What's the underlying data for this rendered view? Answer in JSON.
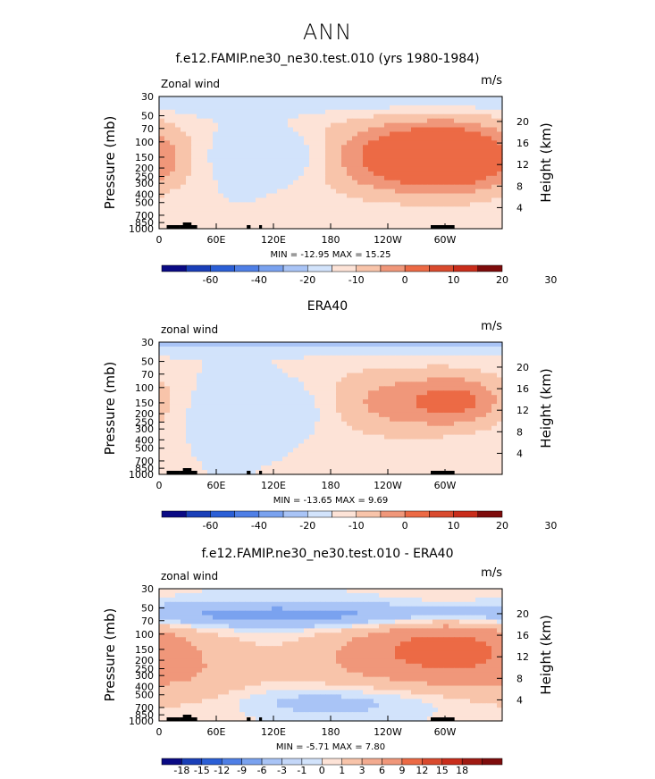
{
  "main_title": "ANN",
  "colors": {
    "blue_dark": "#0a0a84",
    "blue_mid": "#2b5fd6",
    "blue_light": "#7aa2ef",
    "blue_pale": "#a9c4f6",
    "blue_faint": "#d2e3fb",
    "pink_faint": "#fde3d7",
    "pink_light": "#f8c4aa",
    "salmon": "#f0977a",
    "orange_red": "#ec6a45",
    "red": "#c92d1b",
    "red_dark": "#7e0c0c",
    "land": "#000000"
  },
  "chart_data": [
    {
      "type": "heatmap",
      "title": "f.e12.FAMIP.ne30_ne30.test.010 (yrs 1980-1984)",
      "left_label": "Zonal wind",
      "units": "m/s",
      "ylabel": "Pressure (mb)",
      "ylabel_right": "Height (km)",
      "x_ticks": [
        "0",
        "60E",
        "120E",
        "180",
        "120W",
        "60W"
      ],
      "x_tick_values": [
        0,
        60,
        120,
        180,
        240,
        300
      ],
      "xlim": [
        0,
        360
      ],
      "p_ticks": [
        "30",
        "50",
        "70",
        "100",
        "150",
        "200",
        "250",
        "300",
        "400",
        "500",
        "700",
        "850",
        "1000"
      ],
      "p_tick_values": [
        30,
        50,
        70,
        100,
        150,
        200,
        250,
        300,
        400,
        500,
        700,
        850,
        1000
      ],
      "height_ticks": [
        "20",
        "16",
        "12",
        "8",
        "4"
      ],
      "height_tick_values": [
        20,
        16,
        12,
        8,
        4
      ],
      "stats": "MIN = -12.95   MAX =  15.25",
      "min": -12.95,
      "max": 15.25,
      "colorbar_labels": [
        "-60",
        "-40",
        "-20",
        "-10",
        "0",
        "10",
        "20",
        "30"
      ],
      "features": [
        {
          "lon": 250,
          "p": 150,
          "value": 14,
          "lon_radius": 70,
          "p_spread": 1.4
        },
        {
          "lon": 315,
          "p": 150,
          "value": 13,
          "lon_radius": 45,
          "p_spread": 1.3
        },
        {
          "lon": 130,
          "p": 150,
          "value": -7,
          "lon_radius": 50,
          "p_spread": 1.0
        },
        {
          "lon": 180,
          "p": 30,
          "value": -4,
          "lon_radius": 400,
          "p_spread": 0.6
        }
      ]
    },
    {
      "type": "heatmap",
      "title": "ERA40",
      "left_label": "zonal wind",
      "units": "m/s",
      "ylabel": "Pressure (mb)",
      "ylabel_right": "Height (km)",
      "x_ticks": [
        "0",
        "60E",
        "120E",
        "180",
        "120W",
        "60W"
      ],
      "x_tick_values": [
        0,
        60,
        120,
        180,
        240,
        300
      ],
      "xlim": [
        0,
        360
      ],
      "p_ticks": [
        "30",
        "50",
        "70",
        "100",
        "150",
        "200",
        "250",
        "300",
        "400",
        "500",
        "700",
        "850",
        "1000"
      ],
      "p_tick_values": [
        30,
        50,
        70,
        100,
        150,
        200,
        250,
        300,
        400,
        500,
        700,
        850,
        1000
      ],
      "height_ticks": [
        "20",
        "16",
        "12",
        "8",
        "4"
      ],
      "height_tick_values": [
        20,
        16,
        12,
        8,
        4
      ],
      "stats": "MIN = -13.65   MAX =   9.69",
      "min": -13.65,
      "max": 9.69,
      "colorbar_labels": [
        "-60",
        "-40",
        "-20",
        "-10",
        "0",
        "10",
        "20",
        "30"
      ],
      "features": [
        {
          "lon": 245,
          "p": 150,
          "value": 9,
          "lon_radius": 65,
          "p_spread": 1.3
        },
        {
          "lon": 320,
          "p": 140,
          "value": 8,
          "lon_radius": 35,
          "p_spread": 1.0
        },
        {
          "lon": 120,
          "p": 170,
          "value": -6,
          "lon_radius": 55,
          "p_spread": 1.0
        },
        {
          "lon": 180,
          "p": 30,
          "value": -8,
          "lon_radius": 400,
          "p_spread": 0.35
        }
      ]
    },
    {
      "type": "heatmap",
      "title": "f.e12.FAMIP.ne30_ne30.test.010 - ERA40",
      "left_label": "zonal wind",
      "units": "m/s",
      "ylabel": "Pressure (mb)",
      "ylabel_right": "Height (km)",
      "x_ticks": [
        "0",
        "60E",
        "120E",
        "180",
        "120W",
        "60W"
      ],
      "x_tick_values": [
        0,
        60,
        120,
        180,
        240,
        300
      ],
      "xlim": [
        0,
        360
      ],
      "p_ticks": [
        "30",
        "50",
        "70",
        "100",
        "150",
        "200",
        "250",
        "300",
        "400",
        "500",
        "700",
        "850",
        "1000"
      ],
      "p_tick_values": [
        30,
        50,
        70,
        100,
        150,
        200,
        250,
        300,
        400,
        500,
        700,
        850,
        1000
      ],
      "height_ticks": [
        "20",
        "16",
        "12",
        "8",
        "4"
      ],
      "height_tick_values": [
        20,
        16,
        12,
        8,
        4
      ],
      "stats": "MIN =  -5.71   MAX =   7.80",
      "min": -5.71,
      "max": 7.8,
      "colorbar_labels": [
        "-18",
        "-15",
        "-12",
        "-9",
        "-6",
        "-3",
        "-1",
        "0",
        "1",
        "3",
        "6",
        "9",
        "12",
        "15",
        "18"
      ],
      "features": [
        {
          "lon": 300,
          "p": 150,
          "value": 7,
          "lon_radius": 60,
          "p_spread": 1.4
        },
        {
          "lon": 40,
          "p": 300,
          "value": 2,
          "lon_radius": 60,
          "p_spread": 1.5
        },
        {
          "lon": 200,
          "p": 200,
          "value": 2,
          "lon_radius": 50,
          "p_spread": 1.2
        },
        {
          "lon": 180,
          "p": 60,
          "value": -4,
          "lon_radius": 400,
          "p_spread": 0.5
        },
        {
          "lon": 180,
          "p": 600,
          "value": -2,
          "lon_radius": 80,
          "p_spread": 0.6
        }
      ]
    }
  ]
}
